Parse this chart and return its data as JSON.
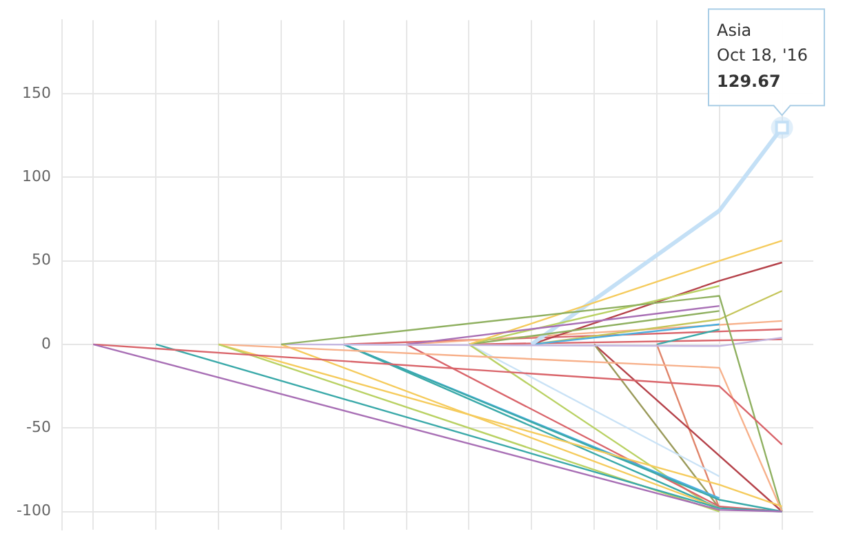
{
  "chart_data": {
    "type": "line",
    "categories": [
      null,
      null,
      null,
      null,
      null,
      null,
      null,
      null,
      null,
      null,
      null,
      null
    ],
    "ylim": [
      -111,
      194
    ],
    "yticks": [
      -100,
      -50,
      0,
      50,
      100,
      150
    ],
    "grid": true,
    "legend": false,
    "marker": "none",
    "line_style": "solid",
    "annotations": [
      "Oct 18, '16"
    ],
    "series": [
      {
        "color": "#a86fb5",
        "values": [
          0,
          null,
          null,
          null,
          null,
          null,
          null,
          null,
          null,
          null,
          -99,
          -100
        ]
      },
      {
        "color": "#d9646a",
        "values": [
          0,
          null,
          null,
          null,
          null,
          null,
          null,
          null,
          null,
          null,
          -25,
          -60
        ]
      },
      {
        "color": "#3aa9a9",
        "values": [
          null,
          0,
          null,
          null,
          null,
          null,
          null,
          null,
          null,
          null,
          -98,
          -100
        ]
      },
      {
        "color": "#b9d163",
        "values": [
          null,
          null,
          0,
          null,
          null,
          null,
          null,
          null,
          null,
          null,
          -100,
          null
        ]
      },
      {
        "color": "#f5cb5c",
        "values": [
          null,
          null,
          0,
          null,
          null,
          null,
          null,
          null,
          null,
          null,
          -84,
          -97
        ]
      },
      {
        "color": "#f7b08a",
        "values": [
          null,
          null,
          0,
          null,
          null,
          null,
          null,
          null,
          null,
          null,
          -14,
          -100
        ]
      },
      {
        "color": "#8fb060",
        "values": [
          null,
          null,
          null,
          0,
          null,
          null,
          null,
          null,
          null,
          null,
          29,
          -100
        ]
      },
      {
        "color": "#f5cb5c",
        "values": [
          null,
          null,
          null,
          0,
          null,
          null,
          null,
          null,
          null,
          null,
          -98,
          null
        ]
      },
      {
        "color": "#c3b6e0",
        "values": [
          null,
          null,
          null,
          0,
          null,
          null,
          null,
          null,
          null,
          null,
          -1,
          4
        ]
      },
      {
        "color": "#3aa9a9",
        "values": [
          null,
          null,
          null,
          null,
          0,
          null,
          null,
          null,
          null,
          null,
          -93,
          -100
        ]
      },
      {
        "color": "#4aaee0",
        "values": [
          null,
          null,
          null,
          null,
          0,
          null,
          null,
          null,
          null,
          null,
          -92,
          null
        ]
      },
      {
        "color": "#3aa9a9",
        "values": [
          null,
          null,
          null,
          null,
          0,
          null,
          null,
          null,
          null,
          null,
          -98,
          null
        ]
      },
      {
        "color": "#d9646a",
        "values": [
          null,
          null,
          null,
          null,
          null,
          0,
          null,
          null,
          null,
          null,
          -97,
          -100
        ]
      },
      {
        "color": "#a86fb5",
        "values": [
          null,
          null,
          null,
          null,
          null,
          0,
          null,
          null,
          null,
          null,
          23,
          null
        ]
      },
      {
        "color": "#b9d163",
        "values": [
          null,
          null,
          null,
          null,
          null,
          null,
          0,
          null,
          null,
          null,
          -100,
          null
        ]
      },
      {
        "color": "#c9e2f6",
        "values": [
          null,
          null,
          null,
          null,
          null,
          null,
          0,
          null,
          null,
          null,
          -79,
          null
        ]
      },
      {
        "color": "#f5cb5c",
        "values": [
          null,
          null,
          null,
          null,
          null,
          null,
          0,
          null,
          null,
          null,
          50,
          62
        ]
      },
      {
        "color": "#8fb060",
        "values": [
          null,
          null,
          null,
          null,
          null,
          null,
          0,
          null,
          null,
          null,
          20,
          null
        ]
      },
      {
        "color": "#b9d163",
        "values": [
          null,
          null,
          null,
          null,
          null,
          null,
          0,
          null,
          null,
          null,
          35,
          null
        ]
      },
      {
        "name": "Asia",
        "color": "#c4e0f6",
        "values": [
          null,
          null,
          null,
          null,
          null,
          null,
          null,
          0,
          null,
          null,
          80,
          129.67
        ],
        "value_labels": [
          null,
          null,
          null,
          null,
          null,
          null,
          null,
          null,
          null,
          null,
          null,
          "129.67"
        ]
      },
      {
        "color": "#b5424a",
        "values": [
          null,
          null,
          null,
          null,
          null,
          null,
          null,
          0,
          null,
          null,
          38,
          49
        ]
      },
      {
        "color": "#4aaee0",
        "values": [
          null,
          null,
          null,
          null,
          null,
          null,
          null,
          0,
          null,
          null,
          12,
          null
        ]
      },
      {
        "color": "#c5c55a",
        "values": [
          null,
          null,
          null,
          null,
          null,
          null,
          null,
          0,
          null,
          null,
          15,
          32
        ]
      },
      {
        "color": "#9a9a5a",
        "values": [
          null,
          null,
          null,
          null,
          null,
          null,
          null,
          null,
          0,
          null,
          -98,
          null
        ]
      },
      {
        "color": "#b5424a",
        "values": [
          null,
          null,
          null,
          null,
          null,
          null,
          null,
          null,
          0,
          null,
          null,
          -100
        ]
      },
      {
        "color": "#e0846a",
        "values": [
          null,
          null,
          null,
          null,
          null,
          null,
          null,
          null,
          null,
          0,
          -98,
          null
        ]
      },
      {
        "color": "#3aa9a9",
        "values": [
          null,
          null,
          null,
          null,
          null,
          null,
          null,
          null,
          null,
          0,
          9,
          null
        ]
      },
      {
        "color": "#f7b08a",
        "values": [
          null,
          null,
          null,
          null,
          null,
          0,
          null,
          null,
          null,
          null,
          null,
          14
        ]
      },
      {
        "color": "#d9646a",
        "values": [
          null,
          null,
          null,
          null,
          0,
          null,
          null,
          null,
          null,
          null,
          null,
          9
        ]
      },
      {
        "color": "#d9646a",
        "values": [
          null,
          null,
          null,
          null,
          null,
          null,
          0,
          null,
          null,
          null,
          null,
          3
        ]
      }
    ]
  }
}
